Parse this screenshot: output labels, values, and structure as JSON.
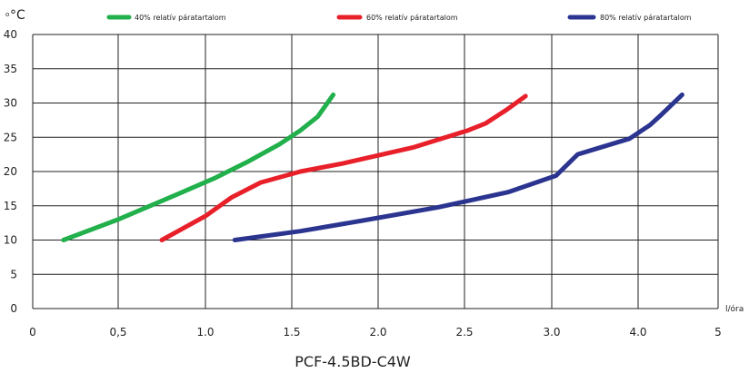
{
  "chart_data": {
    "type": "line",
    "title": "",
    "caption": "PCF-4.5BD-C4W",
    "ylabel": "°C",
    "ylabel_prefix": "o",
    "xlabel": "l/óra",
    "ylim": [
      0,
      40
    ],
    "yticks": [
      "0",
      "5",
      "10",
      "15",
      "20",
      "25",
      "30",
      "35",
      "40"
    ],
    "xticks": [
      "0",
      "0,5",
      "1.0",
      "1.5",
      "2.0",
      "2.5",
      "3.0",
      "4.0",
      "5"
    ],
    "grid": true,
    "legend_position": "top",
    "series": [
      {
        "name": "40% relatív páratartalom",
        "color": "#21b04b",
        "points": [
          [
            0.18,
            10
          ],
          [
            0.5,
            13
          ],
          [
            0.85,
            16.8
          ],
          [
            1.05,
            19
          ],
          [
            1.25,
            21.5
          ],
          [
            1.43,
            24
          ],
          [
            1.55,
            26
          ],
          [
            1.65,
            28
          ],
          [
            1.74,
            31.2
          ]
        ]
      },
      {
        "name": "60% relatív páratartalom",
        "color": "#e8202a",
        "points": [
          [
            0.75,
            10
          ],
          [
            1.0,
            13.5
          ],
          [
            1.15,
            16.2
          ],
          [
            1.32,
            18.4
          ],
          [
            1.55,
            20
          ],
          [
            1.8,
            21.2
          ],
          [
            2.2,
            23.5
          ],
          [
            2.52,
            26
          ],
          [
            2.62,
            27
          ],
          [
            2.74,
            29
          ],
          [
            2.85,
            31
          ]
        ]
      },
      {
        "name": "80% relatív páratartalom",
        "color": "#2b3590",
        "points": [
          [
            1.17,
            10
          ],
          [
            1.55,
            11.3
          ],
          [
            1.9,
            12.8
          ],
          [
            2.35,
            14.8
          ],
          [
            2.75,
            17
          ],
          [
            3.05,
            19.4
          ],
          [
            3.3,
            22.5
          ],
          [
            3.9,
            24.8
          ],
          [
            4.15,
            26.8
          ],
          [
            4.3,
            28.4
          ],
          [
            4.55,
            31.2
          ]
        ]
      }
    ]
  }
}
